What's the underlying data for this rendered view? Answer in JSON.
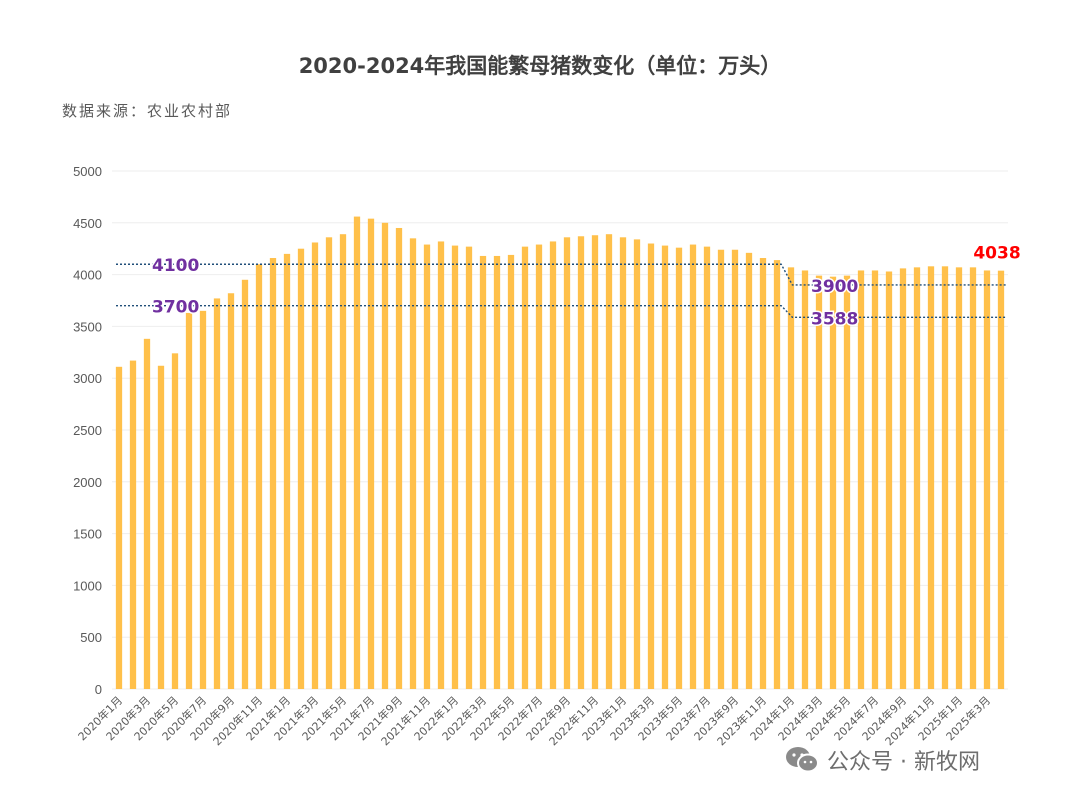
{
  "title": "2020-2024年我国能繁母猪数变化（单位：万头）",
  "source": "数据来源：农业农村部",
  "footer": {
    "brand": "公众号 · 新牧网"
  },
  "colors": {
    "bar": "#FFC04A",
    "ref_line": "#1F4E79",
    "ref_label": "#7030A0",
    "last_value": "#FF0000",
    "grid": "#EEEEEE",
    "tick": "#595959"
  },
  "chart_data": {
    "type": "bar",
    "categories": [
      "2020年1月",
      "2020年2月",
      "2020年3月",
      "2020年4月",
      "2020年5月",
      "2020年6月",
      "2020年7月",
      "2020年8月",
      "2020年9月",
      "2020年10月",
      "2020年11月",
      "2020年12月",
      "2021年1月",
      "2021年2月",
      "2021年3月",
      "2021年4月",
      "2021年5月",
      "2021年6月",
      "2021年7月",
      "2021年8月",
      "2021年9月",
      "2021年10月",
      "2021年11月",
      "2021年12月",
      "2022年1月",
      "2022年2月",
      "2022年3月",
      "2022年4月",
      "2022年5月",
      "2022年6月",
      "2022年7月",
      "2022年8月",
      "2022年9月",
      "2022年10月",
      "2022年11月",
      "2022年12月",
      "2023年1月",
      "2023年2月",
      "2023年3月",
      "2023年4月",
      "2023年5月",
      "2023年6月",
      "2023年7月",
      "2023年8月",
      "2023年9月",
      "2023年10月",
      "2023年11月",
      "2023年12月",
      "2024年1月",
      "2024年2月",
      "2024年3月",
      "2024年4月",
      "2024年5月",
      "2024年6月",
      "2024年7月",
      "2024年8月",
      "2024年9月",
      "2024年10月",
      "2024年11月",
      "2024年12月",
      "2025年1月",
      "2025年2月",
      "2025年3月",
      "2025年4月"
    ],
    "values": [
      3110,
      3170,
      3380,
      3120,
      3240,
      3630,
      3650,
      3770,
      3820,
      3950,
      4100,
      4160,
      4200,
      4250,
      4310,
      4360,
      4390,
      4560,
      4540,
      4500,
      4450,
      4350,
      4290,
      4320,
      4280,
      4270,
      4180,
      4180,
      4190,
      4270,
      4290,
      4320,
      4360,
      4370,
      4380,
      4390,
      4360,
      4340,
      4300,
      4280,
      4260,
      4290,
      4270,
      4240,
      4240,
      4210,
      4160,
      4140,
      4070,
      4040,
      3990,
      3980,
      3990,
      4040,
      4040,
      4030,
      4060,
      4070,
      4080,
      4080,
      4070,
      4070,
      4040,
      4038
    ],
    "x_tick_labels": [
      "2020年1月",
      "2020年3月",
      "2020年5月",
      "2020年7月",
      "2020年9月",
      "2020年11月",
      "2021年1月",
      "2021年3月",
      "2021年5月",
      "2021年7月",
      "2021年9月",
      "2021年11月",
      "2022年1月",
      "2022年3月",
      "2022年5月",
      "2022年7月",
      "2022年9月",
      "2022年11月",
      "2023年1月",
      "2023年3月",
      "2023年5月",
      "2023年7月",
      "2023年9月",
      "2023年11月",
      "2024年1月",
      "2024年3月",
      "2024年5月",
      "2024年7月",
      "2024年9月",
      "2024年11月",
      "2025年1月",
      "2025年3月"
    ],
    "ylim": [
      0,
      5000
    ],
    "yticks": [
      0,
      500,
      1000,
      1500,
      2000,
      2500,
      3000,
      3500,
      4000,
      4500,
      5000
    ],
    "grid": true,
    "last_value_label": "4038",
    "reference_lines": [
      {
        "label": "4100",
        "value": 4100,
        "drops_to": 3900,
        "drop_label": "3900",
        "drop_after": "2023年12月"
      },
      {
        "label": "3700",
        "value": 3700,
        "drops_to": 3588,
        "drop_label": "3588",
        "drop_after": "2023年12月"
      }
    ]
  }
}
